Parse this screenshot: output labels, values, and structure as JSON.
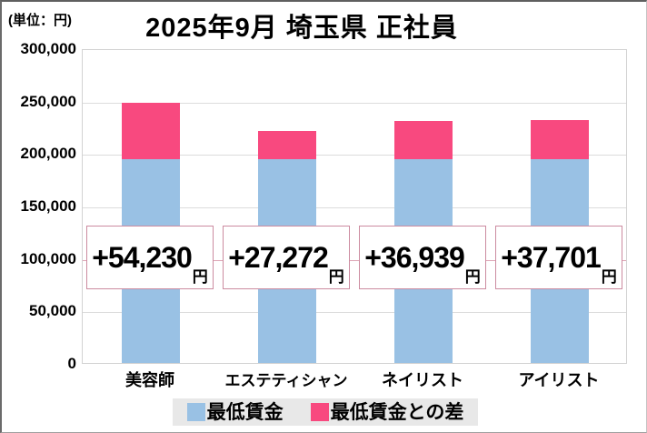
{
  "header": {
    "unit_label": "(単位：円)",
    "title": "2025年9月 埼玉県 正社員"
  },
  "chart_data": {
    "type": "bar",
    "subtype": "stacked",
    "title": "2025年9月 埼玉県 正社員",
    "unit": "円",
    "categories": [
      "美容師",
      "エステティシャン",
      "ネイリスト",
      "アイリスト"
    ],
    "series": [
      {
        "name": "最低賃金",
        "color": "#99c1e4",
        "values": [
          194000,
          194000,
          194000,
          194000
        ]
      },
      {
        "name": "最低賃金との差",
        "color": "#f8497f",
        "values": [
          54230,
          27272,
          36939,
          37701
        ]
      }
    ],
    "totals": [
      248230,
      221272,
      230939,
      231701
    ],
    "diff_labels": [
      "+54,230",
      "+27,272",
      "+36,939",
      "+37,701"
    ],
    "diff_unit": "円",
    "ylim": [
      0,
      300000
    ],
    "ytick_step": 50000,
    "yticks": [
      "300,000",
      "250,000",
      "200,000",
      "150,000",
      "100,000",
      "50,000",
      "0"
    ],
    "grid": true,
    "legend_position": "bottom",
    "connector_line_value": 100000
  },
  "legend": {
    "items": [
      {
        "label": "最低賃金",
        "color": "#99c1e4"
      },
      {
        "label": "最低賃金との差",
        "color": "#f8497f"
      }
    ]
  },
  "colors": {
    "bar_base": "#99c1e4",
    "bar_diff": "#f8497f",
    "box_border": "#cc8ba0",
    "gridline": "#dcdcdc",
    "legend_bg": "#e8e8e8",
    "text": "#000000"
  }
}
